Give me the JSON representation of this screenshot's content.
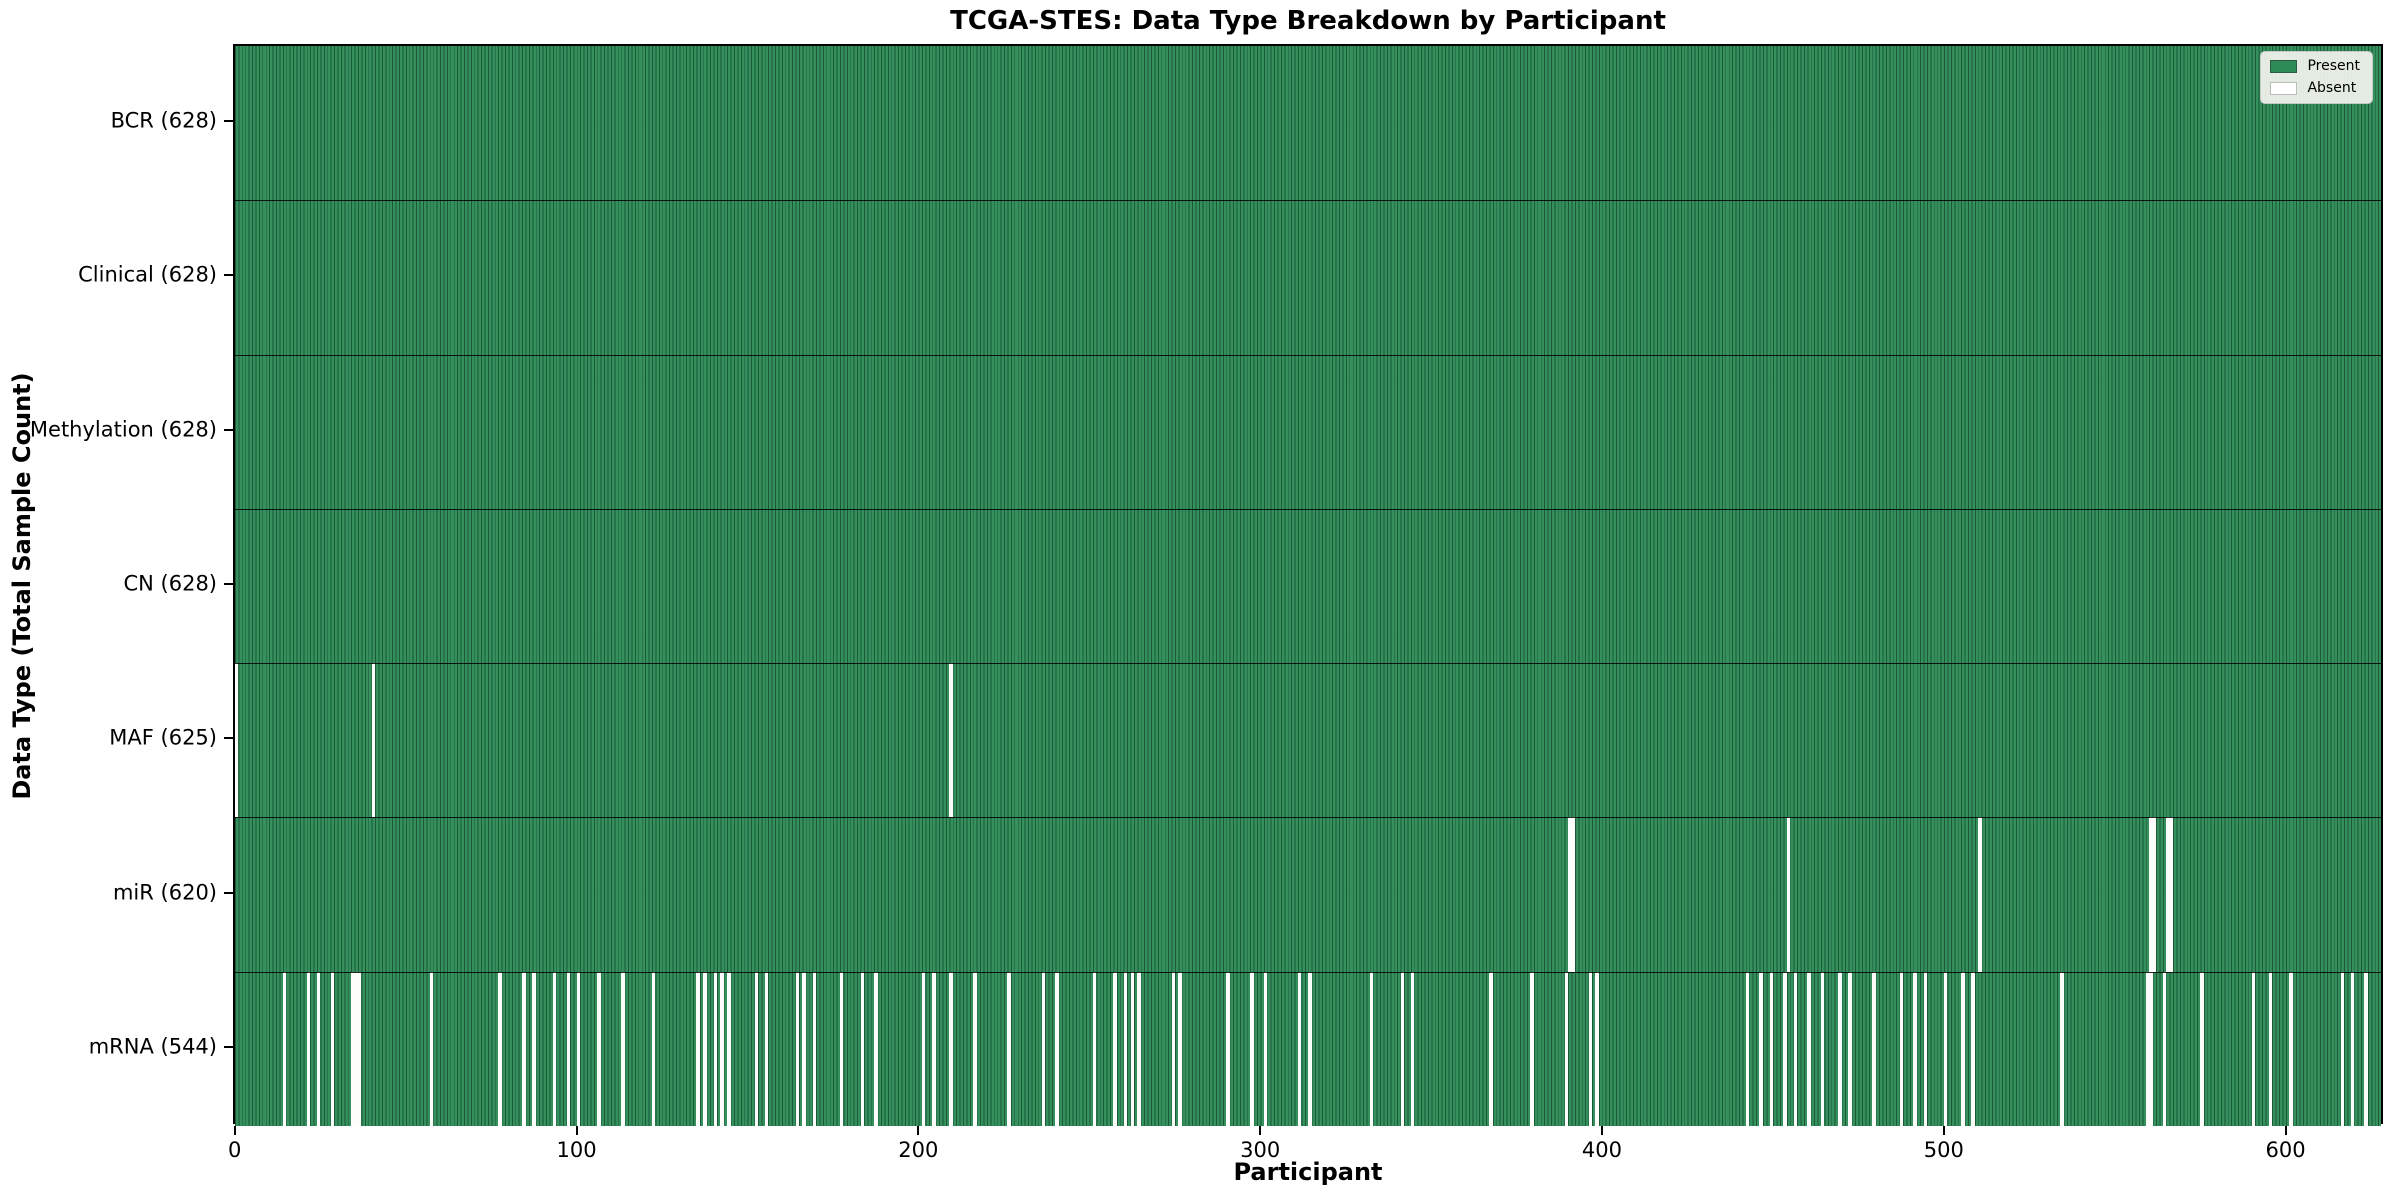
{
  "chart_data": {
    "type": "heatmap",
    "title": "TCGA-STES: Data Type Breakdown by Participant",
    "xlabel": "Participant",
    "ylabel": "Data Type (Total Sample Count)",
    "n_participants": 628,
    "x_ticks": [
      0,
      100,
      200,
      300,
      400,
      500,
      600
    ],
    "xlim": [
      0,
      628
    ],
    "grid": false,
    "legend_position": "upper right",
    "legend": [
      {
        "label": "Present",
        "color": "#2e8b57"
      },
      {
        "label": "Absent",
        "color": "#ffffff"
      }
    ],
    "colors": {
      "present": "#2e8b57",
      "absent": "#fdfdfb",
      "bar_edge": "#14321f",
      "plot_border": "#000000",
      "legend_bg": "#f4f4f0",
      "legend_border": "#c8c8c8"
    },
    "rows": [
      {
        "label": "BCR (628)",
        "name": "BCR",
        "present_count": 628,
        "absent": []
      },
      {
        "label": "Clinical (628)",
        "name": "Clinical",
        "present_count": 628,
        "absent": []
      },
      {
        "label": "Methylation (628)",
        "name": "Methylation",
        "present_count": 628,
        "absent": []
      },
      {
        "label": "CN (628)",
        "name": "CN",
        "present_count": 628,
        "absent": []
      },
      {
        "label": "MAF (625)",
        "name": "MAF",
        "present_count": 625,
        "absent": [
          0,
          40,
          209
        ]
      },
      {
        "label": "miR (620)",
        "name": "miR",
        "present_count": 620,
        "absent": [
          390,
          391,
          454,
          510,
          560,
          561,
          565,
          566
        ]
      },
      {
        "label": "mRNA (544)",
        "name": "mRNA",
        "present_count": 544,
        "absent": [
          14,
          21,
          24,
          28,
          34,
          35,
          36,
          57,
          77,
          84,
          87,
          93,
          97,
          100,
          106,
          113,
          122,
          135,
          137,
          140,
          142,
          144,
          152,
          155,
          164,
          166,
          169,
          177,
          183,
          187,
          201,
          204,
          209,
          216,
          226,
          236,
          240,
          251,
          257,
          260,
          262,
          264,
          274,
          276,
          290,
          297,
          301,
          311,
          314,
          332,
          341,
          344,
          367,
          379,
          389,
          396,
          398,
          442,
          446,
          449,
          453,
          456,
          460,
          464,
          469,
          472,
          479,
          487,
          491,
          494,
          500,
          505,
          508,
          534,
          559,
          560,
          564,
          575,
          590,
          595,
          601,
          616,
          619,
          623
        ]
      }
    ]
  }
}
